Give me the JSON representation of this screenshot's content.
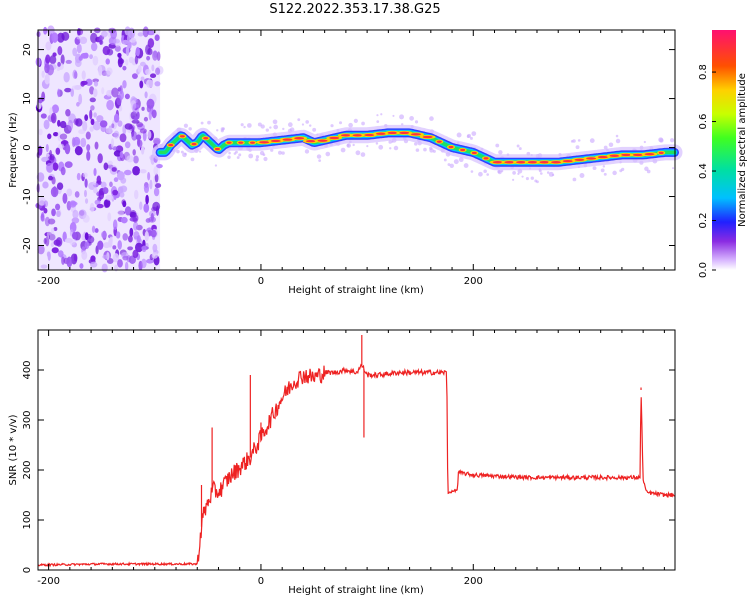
{
  "title": "S122.2022.353.17.38.G25",
  "chart_data": [
    {
      "type": "heatmap",
      "xlabel": "Height of straight line (km)",
      "ylabel": "Frequency (Hz)",
      "xlim": [
        -210,
        390
      ],
      "ylim": [
        -25,
        24
      ],
      "xticks": [
        -200,
        0,
        200
      ],
      "yticks": [
        -20,
        -10,
        0,
        10,
        20
      ],
      "colorbar": {
        "label": "Normalized spectral amplitude",
        "ticks": [
          "0.0",
          "0.2",
          "0.4",
          "0.6",
          "0.8"
        ],
        "tick_values": [
          0,
          0.2,
          0.4,
          0.6,
          0.8
        ],
        "range": [
          0,
          0.97
        ]
      },
      "noise_region_x": [
        -210,
        -95
      ],
      "ridge": {
        "x": [
          -95,
          -90,
          -85,
          -80,
          -75,
          -70,
          -65,
          -60,
          -55,
          -50,
          -45,
          -40,
          -35,
          -30,
          -20,
          -10,
          0,
          20,
          40,
          50,
          60,
          80,
          100,
          120,
          140,
          150,
          160,
          170,
          180,
          190,
          200,
          210,
          220,
          240,
          260,
          280,
          300,
          320,
          340,
          360,
          380,
          390
        ],
        "y": [
          -1.0,
          -1.0,
          0.5,
          1.5,
          2.5,
          1.5,
          0.5,
          1.0,
          2.5,
          1.5,
          0.5,
          -0.5,
          0.5,
          1.0,
          1.0,
          1.0,
          1.0,
          1.5,
          2.0,
          1.0,
          1.5,
          2.5,
          2.5,
          3.0,
          3.0,
          2.5,
          2.0,
          1.0,
          0.0,
          -0.5,
          -1.0,
          -2.0,
          -3.0,
          -3.0,
          -3.0,
          -3.0,
          -2.5,
          -2.0,
          -1.5,
          -1.5,
          -1.0,
          -1.0
        ]
      }
    },
    {
      "type": "line",
      "xlabel": "Height of straight line (km)",
      "ylabel": "SNR (10 * v/v)",
      "xlim": [
        -210,
        390
      ],
      "ylim": [
        0,
        480
      ],
      "xticks": [
        -200,
        0,
        200
      ],
      "yticks": [
        0,
        100,
        200,
        300,
        400
      ],
      "series": [
        {
          "color": "#ee2222",
          "x": [
            -210,
            -150,
            -100,
            -60,
            -55,
            -50,
            -45,
            -40,
            -30,
            -20,
            -10,
            0,
            10,
            20,
            30,
            40,
            50,
            60,
            70,
            80,
            90,
            95,
            100,
            110,
            130,
            150,
            175,
            176,
            177,
            185,
            186,
            200,
            250,
            300,
            350,
            357,
            358,
            360,
            362,
            363,
            380,
            390
          ],
          "y": [
            10,
            12,
            12,
            12,
            105,
            135,
            160,
            155,
            185,
            205,
            225,
            265,
            305,
            345,
            375,
            390,
            385,
            395,
            395,
            400,
            395,
            410,
            390,
            390,
            395,
            395,
            395,
            155,
            155,
            160,
            195,
            190,
            185,
            185,
            185,
            185,
            360,
            180,
            165,
            155,
            150,
            150
          ]
        }
      ],
      "spikes": [
        {
          "x": -56,
          "y": 170
        },
        {
          "x": -46,
          "y": 285
        },
        {
          "x": -30,
          "y": 185
        },
        {
          "x": -10,
          "y": 390
        },
        {
          "x": 0,
          "y": 295
        },
        {
          "x": 95,
          "y": 470
        },
        {
          "x": 97,
          "y": 265
        },
        {
          "x": 358,
          "y": 365
        }
      ]
    }
  ]
}
